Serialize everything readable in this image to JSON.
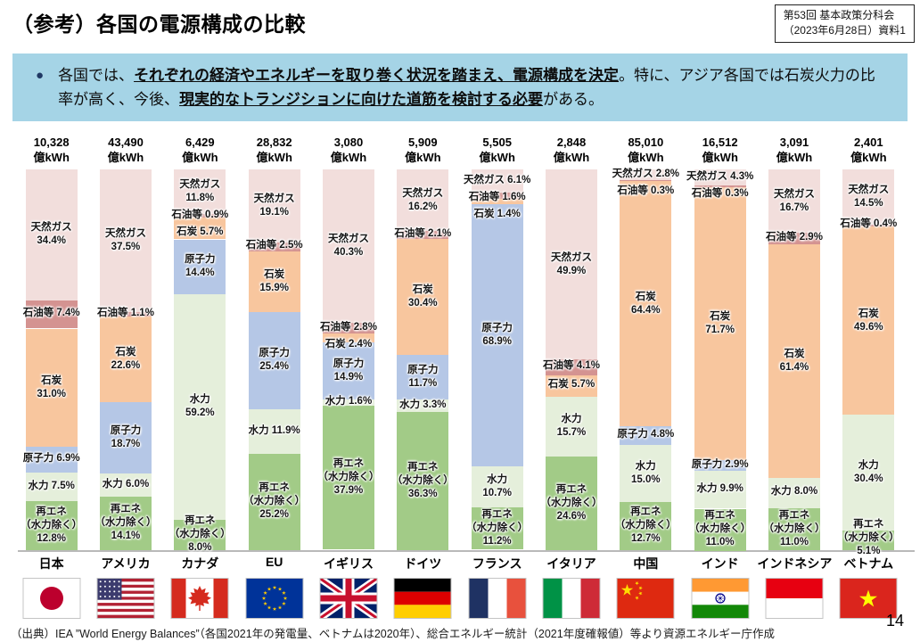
{
  "header": {
    "title": "（参考）各国の電源構成の比較",
    "ref_box": {
      "line1": "第53回 基本政策分科会",
      "line2": "（2023年6月28日）資料1"
    }
  },
  "banner": {
    "bullet": "●",
    "segments": [
      {
        "text": "各国では、",
        "emphasis": false
      },
      {
        "text": "それぞれの経済やエネルギーを取り巻く状況を踏まえ、電源構成を決定",
        "emphasis": true
      },
      {
        "text": "。特に、アジア各国では石炭火力の比率が高く、今後、",
        "emphasis": false
      },
      {
        "text": "現実的なトランジションに向けた道筋を検討する必要",
        "emphasis": true
      },
      {
        "text": "がある。",
        "emphasis": false
      }
    ]
  },
  "chart_data": {
    "type": "bar",
    "stacked": true,
    "value_format": "percent_of_total",
    "unit": "億kWh",
    "ylim": [
      0,
      100
    ],
    "grid": false,
    "legend": "labels drawn inside segments",
    "source_types": [
      {
        "key": "gas",
        "name": "天然ガス"
      },
      {
        "key": "oil",
        "name": "石油等"
      },
      {
        "key": "coal",
        "name": "石炭"
      },
      {
        "key": "nuclear",
        "name": "原子力"
      },
      {
        "key": "hydro",
        "name": "水力"
      },
      {
        "key": "renewables",
        "name": "再エネ（水力除く）"
      }
    ],
    "colors": {
      "gas": "#F2DEDC",
      "oil": "#D49391",
      "coal": "#F8C69E",
      "nuclear": "#B5C7E6",
      "hydro": "#E5EFDB",
      "renewables": "#A2CB87"
    },
    "countries": [
      {
        "name": "日本",
        "flag": "japan",
        "total_label": "10,328",
        "total": 10328,
        "segments": [
          {
            "key": "gas",
            "name": "天然ガス",
            "pct": 34.4,
            "pct_label": "34.4%",
            "label_mode": "two"
          },
          {
            "key": "oil",
            "name": "石油等",
            "pct": 7.4,
            "pct_label": "7.4%",
            "label_mode": "one"
          },
          {
            "key": "coal",
            "name": "石炭",
            "pct": 31.0,
            "pct_label": "31.0%",
            "label_mode": "two"
          },
          {
            "key": "nuclear",
            "name": "原子力",
            "pct": 6.9,
            "pct_label": "6.9%",
            "label_mode": "one"
          },
          {
            "key": "hydro",
            "name": "水力",
            "pct": 7.5,
            "pct_label": "7.5%",
            "label_mode": "one"
          },
          {
            "key": "renewables",
            "name": "再エネ",
            "sub": "（水力除く）",
            "pct": 12.8,
            "pct_label": "12.8%",
            "label_mode": "three"
          }
        ]
      },
      {
        "name": "アメリカ",
        "flag": "usa",
        "total_label": "43,490",
        "total": 43490,
        "segments": [
          {
            "key": "gas",
            "name": "天然ガス",
            "pct": 37.5,
            "pct_label": "37.5%",
            "label_mode": "two"
          },
          {
            "key": "oil",
            "name": "石油等",
            "pct": 1.1,
            "pct_label": "1.1%",
            "label_mode": "one"
          },
          {
            "key": "coal",
            "name": "石炭",
            "pct": 22.6,
            "pct_label": "22.6%",
            "label_mode": "two"
          },
          {
            "key": "nuclear",
            "name": "原子力",
            "pct": 18.7,
            "pct_label": "18.7%",
            "label_mode": "two"
          },
          {
            "key": "hydro",
            "name": "水力",
            "pct": 6.0,
            "pct_label": "6.0%",
            "label_mode": "one"
          },
          {
            "key": "renewables",
            "name": "再エネ",
            "sub": "（水力除く）",
            "pct": 14.1,
            "pct_label": "14.1%",
            "label_mode": "three"
          }
        ]
      },
      {
        "name": "カナダ",
        "flag": "canada",
        "total_label": "6,429",
        "total": 6429,
        "segments": [
          {
            "key": "gas",
            "name": "天然ガス",
            "pct": 11.8,
            "pct_label": "11.8%",
            "label_mode": "two"
          },
          {
            "key": "oil",
            "name": "石油等",
            "pct": 0.9,
            "pct_label": "0.9%",
            "label_mode": "one"
          },
          {
            "key": "coal",
            "name": "石炭",
            "pct": 5.7,
            "pct_label": "5.7%",
            "label_mode": "one"
          },
          {
            "key": "nuclear",
            "name": "原子力",
            "pct": 14.4,
            "pct_label": "14.4%",
            "label_mode": "two"
          },
          {
            "key": "hydro",
            "name": "水力",
            "pct": 59.2,
            "pct_label": "59.2%",
            "label_mode": "two"
          },
          {
            "key": "renewables",
            "name": "再エネ",
            "sub": "（水力除く）",
            "pct": 8.0,
            "pct_label": "8.0%",
            "label_mode": "three"
          }
        ]
      },
      {
        "name": "EU",
        "flag": "eu",
        "total_label": "28,832",
        "total": 28832,
        "segments": [
          {
            "key": "gas",
            "name": "天然ガス",
            "pct": 19.1,
            "pct_label": "19.1%",
            "label_mode": "two"
          },
          {
            "key": "oil",
            "name": "石油等",
            "pct": 2.5,
            "pct_label": "2.5%",
            "label_mode": "one"
          },
          {
            "key": "coal",
            "name": "石炭",
            "pct": 15.9,
            "pct_label": "15.9%",
            "label_mode": "two"
          },
          {
            "key": "nuclear",
            "name": "原子力",
            "pct": 25.4,
            "pct_label": "25.4%",
            "label_mode": "two"
          },
          {
            "key": "hydro",
            "name": "水力",
            "pct": 11.9,
            "pct_label": "11.9%",
            "label_mode": "one"
          },
          {
            "key": "renewables",
            "name": "再エネ",
            "sub": "（水力除く）",
            "pct": 25.2,
            "pct_label": "25.2%",
            "label_mode": "three"
          }
        ]
      },
      {
        "name": "イギリス",
        "flag": "uk",
        "total_label": "3,080",
        "total": 3080,
        "segments": [
          {
            "key": "gas",
            "name": "天然ガス",
            "pct": 40.3,
            "pct_label": "40.3%",
            "label_mode": "two"
          },
          {
            "key": "oil",
            "name": "石油等",
            "pct": 2.8,
            "pct_label": "2.8%",
            "label_mode": "one"
          },
          {
            "key": "coal",
            "name": "石炭",
            "pct": 2.4,
            "pct_label": "2.4%",
            "label_mode": "one"
          },
          {
            "key": "nuclear",
            "name": "原子力",
            "pct": 14.9,
            "pct_label": "14.9%",
            "label_mode": "two"
          },
          {
            "key": "hydro",
            "name": "水力",
            "pct": 1.6,
            "pct_label": "1.6%",
            "label_mode": "one"
          },
          {
            "key": "renewables",
            "name": "再エネ",
            "sub": "（水力除く）",
            "pct": 37.9,
            "pct_label": "37.9%",
            "label_mode": "three"
          }
        ]
      },
      {
        "name": "ドイツ",
        "flag": "germany",
        "total_label": "5,909",
        "total": 5909,
        "segments": [
          {
            "key": "gas",
            "name": "天然ガス",
            "pct": 16.2,
            "pct_label": "16.2%",
            "label_mode": "two"
          },
          {
            "key": "oil",
            "name": "石油等",
            "pct": 2.1,
            "pct_label": "2.1%",
            "label_mode": "one"
          },
          {
            "key": "coal",
            "name": "石炭",
            "pct": 30.4,
            "pct_label": "30.4%",
            "label_mode": "two"
          },
          {
            "key": "nuclear",
            "name": "原子力",
            "pct": 11.7,
            "pct_label": "11.7%",
            "label_mode": "two"
          },
          {
            "key": "hydro",
            "name": "水力",
            "pct": 3.3,
            "pct_label": "3.3%",
            "label_mode": "one"
          },
          {
            "key": "renewables",
            "name": "再エネ",
            "sub": "（水力除く）",
            "pct": 36.3,
            "pct_label": "36.3%",
            "label_mode": "three"
          }
        ]
      },
      {
        "name": "フランス",
        "flag": "france",
        "total_label": "5,505",
        "total": 5505,
        "segments": [
          {
            "key": "gas",
            "name": "天然ガス",
            "pct": 6.1,
            "pct_label": "6.1%",
            "label_mode": "one"
          },
          {
            "key": "oil",
            "name": "石油等",
            "pct": 1.6,
            "pct_label": "1.6%",
            "label_mode": "one"
          },
          {
            "key": "coal",
            "name": "石炭",
            "pct": 1.4,
            "pct_label": "1.4%",
            "label_mode": "one"
          },
          {
            "key": "nuclear",
            "name": "原子力",
            "pct": 68.9,
            "pct_label": "68.9%",
            "label_mode": "two"
          },
          {
            "key": "hydro",
            "name": "水力",
            "pct": 10.7,
            "pct_label": "10.7%",
            "label_mode": "two"
          },
          {
            "key": "renewables",
            "name": "再エネ",
            "sub": "（水力除く）",
            "pct": 11.2,
            "pct_label": "11.2%",
            "label_mode": "three"
          }
        ]
      },
      {
        "name": "イタリア",
        "flag": "italy",
        "total_label": "2,848",
        "total": 2848,
        "segments": [
          {
            "key": "gas",
            "name": "天然ガス",
            "pct": 49.9,
            "pct_label": "49.9%",
            "label_mode": "two"
          },
          {
            "key": "oil",
            "name": "石油等",
            "pct": 4.1,
            "pct_label": "4.1%",
            "label_mode": "one"
          },
          {
            "key": "coal",
            "name": "石炭",
            "pct": 5.7,
            "pct_label": "5.7%",
            "label_mode": "one"
          },
          {
            "key": "hydro",
            "name": "水力",
            "pct": 15.7,
            "pct_label": "15.7%",
            "label_mode": "two"
          },
          {
            "key": "renewables",
            "name": "再エネ",
            "sub": "（水力除く）",
            "pct": 24.6,
            "pct_label": "24.6%",
            "label_mode": "three"
          }
        ]
      },
      {
        "name": "中国",
        "flag": "china",
        "total_label": "85,010",
        "total": 85010,
        "segments": [
          {
            "key": "gas",
            "name": "天然ガス",
            "pct": 2.8,
            "pct_label": "2.8%",
            "label_mode": "one"
          },
          {
            "key": "oil",
            "name": "石油等",
            "pct": 0.3,
            "pct_label": "0.3%",
            "label_mode": "one"
          },
          {
            "key": "coal",
            "name": "石炭",
            "pct": 64.4,
            "pct_label": "64.4%",
            "label_mode": "two"
          },
          {
            "key": "nuclear",
            "name": "原子力",
            "pct": 4.8,
            "pct_label": "4.8%",
            "label_mode": "one"
          },
          {
            "key": "hydro",
            "name": "水力",
            "pct": 15.0,
            "pct_label": "15.0%",
            "label_mode": "two"
          },
          {
            "key": "renewables",
            "name": "再エネ",
            "sub": "（水力除く）",
            "pct": 12.7,
            "pct_label": "12.7%",
            "label_mode": "three"
          }
        ]
      },
      {
        "name": "インド",
        "flag": "india",
        "total_label": "16,512",
        "total": 16512,
        "segments": [
          {
            "key": "gas",
            "name": "天然ガス",
            "pct": 4.3,
            "pct_label": "4.3%",
            "label_mode": "one"
          },
          {
            "key": "oil",
            "name": "石油等",
            "pct": 0.3,
            "pct_label": "0.3%",
            "label_mode": "one"
          },
          {
            "key": "coal",
            "name": "石炭",
            "pct": 71.7,
            "pct_label": "71.7%",
            "label_mode": "two"
          },
          {
            "key": "nuclear",
            "name": "原子力",
            "pct": 2.9,
            "pct_label": "2.9%",
            "label_mode": "one"
          },
          {
            "key": "hydro",
            "name": "水力",
            "pct": 9.9,
            "pct_label": "9.9%",
            "label_mode": "one"
          },
          {
            "key": "renewables",
            "name": "再エネ",
            "sub": "（水力除く）",
            "pct": 11.0,
            "pct_label": "11.0%",
            "label_mode": "three"
          }
        ]
      },
      {
        "name": "インドネシア",
        "flag": "indonesia",
        "total_label": "3,091",
        "total": 3091,
        "segments": [
          {
            "key": "gas",
            "name": "天然ガス",
            "pct": 16.7,
            "pct_label": "16.7%",
            "label_mode": "two"
          },
          {
            "key": "oil",
            "name": "石油等",
            "pct": 2.9,
            "pct_label": "2.9%",
            "label_mode": "one"
          },
          {
            "key": "coal",
            "name": "石炭",
            "pct": 61.4,
            "pct_label": "61.4%",
            "label_mode": "two"
          },
          {
            "key": "hydro",
            "name": "水力",
            "pct": 8.0,
            "pct_label": "8.0%",
            "label_mode": "one"
          },
          {
            "key": "renewables",
            "name": "再エネ",
            "sub": "（水力除く）",
            "pct": 11.0,
            "pct_label": "11.0%",
            "label_mode": "three"
          }
        ]
      },
      {
        "name": "ベトナム",
        "flag": "vietnam",
        "total_label": "2,401",
        "total": 2401,
        "segments": [
          {
            "key": "gas",
            "name": "天然ガス",
            "pct": 14.5,
            "pct_label": "14.5%",
            "label_mode": "two"
          },
          {
            "key": "oil",
            "name": "石油等",
            "pct": 0.4,
            "pct_label": "0.4%",
            "label_mode": "one"
          },
          {
            "key": "coal",
            "name": "石炭",
            "pct": 49.6,
            "pct_label": "49.6%",
            "label_mode": "two"
          },
          {
            "key": "hydro",
            "name": "水力",
            "pct": 30.4,
            "pct_label": "30.4%",
            "label_mode": "two"
          },
          {
            "key": "renewables",
            "name": "再エネ",
            "sub": "（水力除く）",
            "pct": 5.1,
            "pct_label": "5.1%",
            "label_mode": "three"
          }
        ]
      }
    ]
  },
  "footer": {
    "source": "（出典）IEA ”World Energy Balances”（各国2021年の発電量、ベトナムは2020年）、総合エネルギー統計（2021年度確報値）等より資源エネルギー庁作成",
    "page": "14"
  }
}
